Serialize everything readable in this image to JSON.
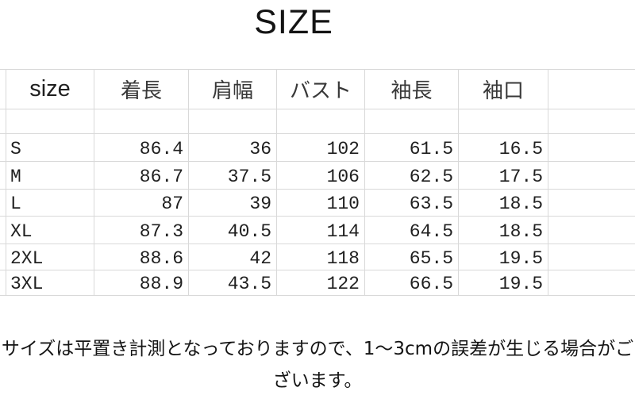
{
  "title": "SIZE",
  "chart_data": {
    "type": "table",
    "title": "SIZE",
    "columns": [
      "size",
      "着長",
      "肩幅",
      "バスト",
      "袖長",
      "袖口"
    ],
    "rows": [
      [
        "S",
        "86.4",
        "36",
        "102",
        "61.5",
        "16.5"
      ],
      [
        "M",
        "86.7",
        "37.5",
        "106",
        "62.5",
        "17.5"
      ],
      [
        "L",
        "87",
        "39",
        "110",
        "63.5",
        "18.5"
      ],
      [
        "XL",
        "87.3",
        "40.5",
        "114",
        "64.5",
        "18.5"
      ],
      [
        "2XL",
        "88.6",
        "42",
        "118",
        "65.5",
        "19.5"
      ],
      [
        "3XL",
        "88.9",
        "43.5",
        "122",
        "66.5",
        "19.5"
      ]
    ],
    "unit_note": "サイズは平置き計測となっておりますので、1～3cmの誤差が生じる場合がございます。",
    "grid_color": "#d9d9d9",
    "text_color": "#1f1f1f"
  }
}
